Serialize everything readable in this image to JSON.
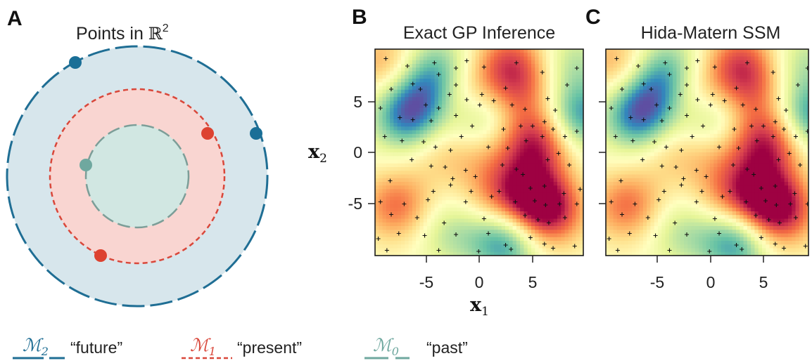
{
  "panels": {
    "A": {
      "letter": "A",
      "title_prefix": "Points in ",
      "title_math": "ℝ",
      "title_sup": "2",
      "colors": {
        "outer_fill": "#d7e6ec",
        "outer_stroke": "#1f6e94",
        "middle_fill": "#f9d5d1",
        "middle_stroke": "#d9473a",
        "inner_fill": "#d1e7e2",
        "inner_stroke": "#7c9e98"
      },
      "points": [
        {
          "ring": "outer",
          "color": "#1a6f97"
        },
        {
          "ring": "outer",
          "color": "#1a6f97"
        },
        {
          "ring": "middle",
          "color": "#dd4230"
        },
        {
          "ring": "middle",
          "color": "#dd4230"
        },
        {
          "ring": "inner",
          "color": "#6fa89f"
        }
      ]
    },
    "B": {
      "letter": "B",
      "title": "Exact GP Inference"
    },
    "C": {
      "letter": "C",
      "title": "Hida-Matern SSM"
    }
  },
  "axes": {
    "xlabel_main": "x",
    "xlabel_sub": "1",
    "ylabel_main": "x",
    "ylabel_sub": "2",
    "xticks": [
      "-5",
      "0",
      "5"
    ],
    "yticks": [
      "5",
      "0",
      "-5"
    ]
  },
  "legend": [
    {
      "math": "ℳ",
      "sub": "2",
      "label": "“future”",
      "color": "#1f6e94",
      "style": "dashed-long"
    },
    {
      "math": "ℳ",
      "sub": "1",
      "label": "“present”",
      "color": "#d9473a",
      "style": "dashed-short"
    },
    {
      "math": "ℳ",
      "sub": "0",
      "label": "“past”",
      "color": "#6fa89f",
      "style": "dashed-long"
    }
  ],
  "chart_data": [
    {
      "type": "heatmap",
      "title": "Exact GP Inference",
      "xlabel": "x1",
      "ylabel": "x2",
      "xlim": [
        -9.5,
        9.8
      ],
      "ylim": [
        -9.7,
        9.9
      ],
      "xticks": [
        -5,
        0,
        5
      ],
      "yticks": [
        -5,
        0,
        5
      ],
      "colormap": "Spectral",
      "grid": false,
      "field_blobs": [
        {
          "x": -6.5,
          "y": 3.5,
          "value": -1.0
        },
        {
          "x": -4.5,
          "y": 6.3,
          "value": -0.7
        },
        {
          "x": 0.2,
          "y": 3.0,
          "value": -0.7
        },
        {
          "x": 2.5,
          "y": -8.5,
          "value": -0.9
        },
        {
          "x": -2.5,
          "y": -7.5,
          "value": -0.4
        },
        {
          "x": 9.5,
          "y": 3.5,
          "value": -0.9
        },
        {
          "x": 9.0,
          "y": 8.5,
          "value": -0.4
        },
        {
          "x": -3.5,
          "y": 8.5,
          "value": -0.4
        },
        {
          "x": 3.0,
          "y": 8.5,
          "value": 0.8
        },
        {
          "x": 5.5,
          "y": 1.0,
          "value": 1.0
        },
        {
          "x": 4.0,
          "y": 5.5,
          "value": 0.5
        },
        {
          "x": 6.5,
          "y": -5.5,
          "value": 1.1
        },
        {
          "x": 4.5,
          "y": -3.5,
          "value": 0.8
        },
        {
          "x": -7.5,
          "y": -5.0,
          "value": 0.7
        },
        {
          "x": -8.5,
          "y": 8.5,
          "value": 0.5
        },
        {
          "x": -1.5,
          "y": 5.5,
          "value": 0.5
        },
        {
          "x": 0.5,
          "y": 0.5,
          "value": 0.4
        },
        {
          "x": -3.5,
          "y": 0.2,
          "value": 0.3
        },
        {
          "x": 1.5,
          "y": -4.0,
          "value": 0.4
        }
      ],
      "observations": [
        [
          -8.5,
          9.0
        ],
        [
          -6.5,
          8.3
        ],
        [
          -4.0,
          8.6
        ],
        [
          -3.6,
          7.5
        ],
        [
          -2.0,
          8.1
        ],
        [
          -1.0,
          8.8
        ],
        [
          0.6,
          8.2
        ],
        [
          3.6,
          8.6
        ],
        [
          6.0,
          7.7
        ],
        [
          9.2,
          8.1
        ],
        [
          -8.0,
          6.1
        ],
        [
          -6.0,
          6.6
        ],
        [
          -5.3,
          6.1
        ],
        [
          -4.8,
          4.6
        ],
        [
          -3.6,
          4.3
        ],
        [
          -2.6,
          5.6
        ],
        [
          -2.0,
          6.5
        ],
        [
          -1.0,
          5.1
        ],
        [
          0.4,
          5.6
        ],
        [
          0.2,
          4.6
        ],
        [
          1.5,
          5.0
        ],
        [
          2.6,
          6.2
        ],
        [
          3.2,
          4.6
        ],
        [
          4.4,
          4.2
        ],
        [
          6.5,
          5.2
        ],
        [
          7.2,
          4.1
        ],
        [
          8.3,
          6.5
        ],
        [
          -9.0,
          4.3
        ],
        [
          -7.2,
          3.4
        ],
        [
          -6.0,
          3.2
        ],
        [
          -4.3,
          3.1
        ],
        [
          -2.0,
          3.6
        ],
        [
          -0.5,
          2.6
        ],
        [
          2.4,
          2.3
        ],
        [
          4.0,
          2.6
        ],
        [
          5.1,
          2.6
        ],
        [
          6.2,
          3.0
        ],
        [
          7.0,
          2.3
        ],
        [
          8.1,
          1.6
        ],
        [
          9.2,
          2.1
        ],
        [
          -8.6,
          1.6
        ],
        [
          -7.0,
          1.2
        ],
        [
          -5.0,
          1.1
        ],
        [
          -3.9,
          0.6
        ],
        [
          -2.5,
          0.3
        ],
        [
          -1.5,
          1.6
        ],
        [
          1.0,
          0.6
        ],
        [
          2.8,
          0.5
        ],
        [
          4.5,
          1.2
        ],
        [
          6.0,
          1.6
        ],
        [
          7.5,
          0.0
        ],
        [
          -6.1,
          -0.6
        ],
        [
          -4.3,
          -1.2
        ],
        [
          -3.0,
          -1.3
        ],
        [
          -2.3,
          -2.4
        ],
        [
          -1.1,
          -1.6
        ],
        [
          -0.2,
          -2.2
        ],
        [
          2.3,
          -1.1
        ],
        [
          3.6,
          -1.5
        ],
        [
          4.2,
          -2.0
        ],
        [
          6.5,
          -0.6
        ],
        [
          8.5,
          -1.1
        ],
        [
          -8.1,
          -2.6
        ],
        [
          -4.1,
          -3.6
        ],
        [
          -2.5,
          -3.0
        ],
        [
          -0.6,
          -3.6
        ],
        [
          2.0,
          -3.6
        ],
        [
          4.9,
          -3.3
        ],
        [
          6.2,
          -3.1
        ],
        [
          8.0,
          -3.8
        ],
        [
          9.5,
          -3.4
        ],
        [
          -9.0,
          -4.6
        ],
        [
          -6.8,
          -4.8
        ],
        [
          -4.6,
          -4.4
        ],
        [
          -1.1,
          -4.6
        ],
        [
          1.3,
          -4.1
        ],
        [
          3.5,
          -4.6
        ],
        [
          5.3,
          -4.5
        ],
        [
          6.3,
          -4.9
        ],
        [
          7.6,
          -4.8
        ],
        [
          9.2,
          -4.8
        ],
        [
          -8.0,
          -5.8
        ],
        [
          -5.6,
          -6.1
        ],
        [
          -3.1,
          -6.6
        ],
        [
          0.6,
          -6.2
        ],
        [
          4.4,
          -5.9
        ],
        [
          5.6,
          -6.3
        ],
        [
          6.6,
          -6.6
        ],
        [
          8.1,
          -6.1
        ],
        [
          -9.2,
          -8.1
        ],
        [
          -7.3,
          -7.6
        ],
        [
          -4.9,
          -7.8
        ],
        [
          -2.0,
          -7.7
        ],
        [
          1.0,
          -7.6
        ],
        [
          2.6,
          -8.7
        ],
        [
          4.9,
          -8.0
        ],
        [
          6.2,
          -8.6
        ],
        [
          7.0,
          -9.0
        ],
        [
          9.0,
          -8.8
        ],
        [
          -8.4,
          -9.2
        ],
        [
          -3.6,
          -9.2
        ],
        [
          0.1,
          -9.3
        ],
        [
          3.1,
          -9.1
        ]
      ]
    },
    {
      "type": "heatmap",
      "title": "Hida-Matern SSM",
      "xlim": [
        -9.5,
        9.8
      ],
      "ylim": [
        -9.7,
        9.9
      ],
      "xticks": [
        -5,
        0,
        5
      ],
      "yticks": [
        -5,
        0,
        5
      ],
      "colormap": "Spectral",
      "grid": false,
      "note_same_as": "Exact GP Inference"
    }
  ]
}
